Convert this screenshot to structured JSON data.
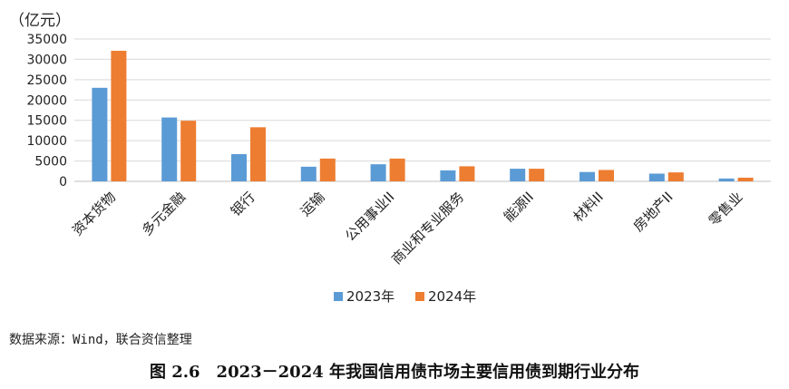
{
  "figure": {
    "unit_label": "（亿元）",
    "source": "数据来源：Wind，联合资信整理",
    "caption": "图 2.6　2023－2024 年我国信用债市场主要信用债到期行业分布"
  },
  "colors": {
    "series_2023": "#5b9bd5",
    "series_2024": "#ed7d31",
    "grid": "#d9d9d9",
    "axis": "#bfbfbf"
  },
  "chart_data": {
    "type": "bar",
    "categories": [
      "资本货物",
      "多元金融",
      "银行",
      "运输",
      "公用事业II",
      "商业和专业服务",
      "能源II",
      "材料II",
      "房地产II",
      "零售业"
    ],
    "series": [
      {
        "name": "2023年",
        "values": [
          23000,
          15700,
          6700,
          3600,
          4200,
          2700,
          3100,
          2300,
          1900,
          700
        ]
      },
      {
        "name": "2024年",
        "values": [
          32100,
          14900,
          13300,
          5600,
          5600,
          3700,
          3100,
          2800,
          2200,
          900
        ]
      }
    ],
    "yticks": [
      0,
      5000,
      10000,
      15000,
      20000,
      25000,
      30000,
      35000
    ],
    "ylim": [
      0,
      35000
    ],
    "ylabel": "（亿元）",
    "grid": true,
    "legend_position": "bottom"
  }
}
